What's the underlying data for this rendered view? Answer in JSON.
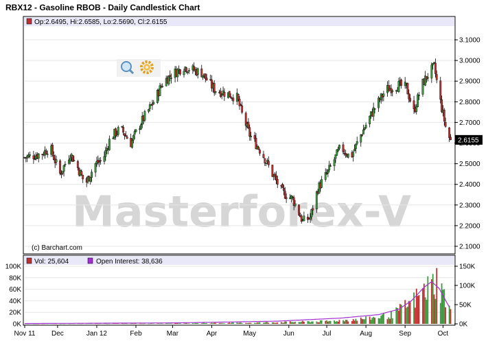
{
  "chart_data": [
    {
      "type": "candlestick",
      "title": "RBX12 - Gasoline RBOB - Daily Candlestick Chart",
      "ohlc_legend": "Op:2.6495, Hi:2.6585, Lo:2.5690, Cl:2.6155",
      "last_price": 2.6155,
      "last_price_label": "2.6155",
      "ylim": [
        2.07,
        3.16
      ],
      "y_ticks": [
        3.1,
        3.0,
        2.9,
        2.8,
        2.7,
        2.6,
        2.5,
        2.4,
        2.3,
        2.2,
        2.1
      ],
      "y_tick_labels": [
        "3.1000",
        "3.0000",
        "2.9000",
        "2.8000",
        "2.7000",
        "2.6000",
        "2.5000",
        "2.4000",
        "2.3000",
        "2.2000",
        "2.1000"
      ],
      "copyright": "(c) Barchart.com",
      "watermark": "Masterforex-V",
      "up_color": "#3a9a3a",
      "down_color": "#c03030",
      "path_anchors": [
        [
          0,
          2.53
        ],
        [
          14,
          2.55
        ],
        [
          20,
          2.58
        ],
        [
          28,
          2.45
        ],
        [
          36,
          2.55
        ],
        [
          42,
          2.48
        ],
        [
          48,
          2.4
        ],
        [
          56,
          2.5
        ],
        [
          62,
          2.52
        ],
        [
          68,
          2.63
        ],
        [
          76,
          2.67
        ],
        [
          84,
          2.6
        ],
        [
          92,
          2.7
        ],
        [
          96,
          2.74
        ],
        [
          102,
          2.8
        ],
        [
          110,
          2.9
        ],
        [
          116,
          2.93
        ],
        [
          126,
          2.97
        ],
        [
          140,
          2.94
        ],
        [
          150,
          2.86
        ],
        [
          160,
          2.84
        ],
        [
          168,
          2.82
        ],
        [
          172,
          2.74
        ],
        [
          178,
          2.64
        ],
        [
          188,
          2.55
        ],
        [
          196,
          2.45
        ],
        [
          204,
          2.36
        ],
        [
          212,
          2.33
        ],
        [
          220,
          2.22
        ],
        [
          226,
          2.24
        ],
        [
          232,
          2.38
        ],
        [
          240,
          2.46
        ],
        [
          250,
          2.58
        ],
        [
          258,
          2.53
        ],
        [
          266,
          2.64
        ],
        [
          276,
          2.76
        ],
        [
          286,
          2.86
        ],
        [
          296,
          2.88
        ],
        [
          302,
          2.87
        ],
        [
          308,
          2.75
        ],
        [
          314,
          2.88
        ],
        [
          320,
          2.94
        ],
        [
          324,
          2.97
        ],
        [
          328,
          2.83
        ],
        [
          334,
          2.65
        ],
        [
          337,
          2.6155
        ]
      ]
    },
    {
      "type": "bar",
      "legend_volume": "Vol: 25,604",
      "legend_open_interest": "Open Interest: 38,636",
      "volume_color": "#c03030",
      "volume_up_color": "#3a9a3a",
      "open_interest_color": "#a030d0",
      "left_ylim": [
        0,
        100000
      ],
      "left_ticks": [
        0,
        20000,
        40000,
        60000,
        80000,
        100000
      ],
      "left_tick_labels": [
        "0K",
        "20K",
        "40K",
        "60K",
        "80K",
        "100K"
      ],
      "right_ylim": [
        0,
        150000
      ],
      "right_ticks": [
        0,
        50000,
        100000,
        150000
      ],
      "right_tick_labels": [
        "0K",
        "50K",
        "100K",
        "150K"
      ],
      "volume_anchors": [
        [
          0,
          300
        ],
        [
          100,
          600
        ],
        [
          180,
          2000
        ],
        [
          240,
          4500
        ],
        [
          270,
          9000
        ],
        [
          290,
          15000
        ],
        [
          305,
          35000
        ],
        [
          318,
          60000
        ],
        [
          326,
          75000
        ],
        [
          332,
          48000
        ],
        [
          337,
          25604
        ]
      ],
      "oi_anchors": [
        [
          0,
          800
        ],
        [
          120,
          2500
        ],
        [
          200,
          7000
        ],
        [
          250,
          15000
        ],
        [
          280,
          24000
        ],
        [
          296,
          38000
        ],
        [
          306,
          60000
        ],
        [
          316,
          95000
        ],
        [
          322,
          110000
        ],
        [
          328,
          92000
        ],
        [
          334,
          55000
        ],
        [
          337,
          38636
        ]
      ]
    }
  ],
  "x_axis": {
    "labels": [
      "Nov 11",
      "Dec",
      "Jan 12",
      "Feb",
      "Mar",
      "Apr",
      "May",
      "Jun",
      "Jul",
      "Aug",
      "Sep",
      "Oct"
    ],
    "label_days": [
      0,
      26,
      57,
      88,
      117,
      148,
      178,
      209,
      239,
      270,
      301,
      331
    ],
    "total_days": 340
  },
  "toolbar": {
    "zoom_icon": "magnifier-icon",
    "settings_icon": "gear-icon"
  }
}
